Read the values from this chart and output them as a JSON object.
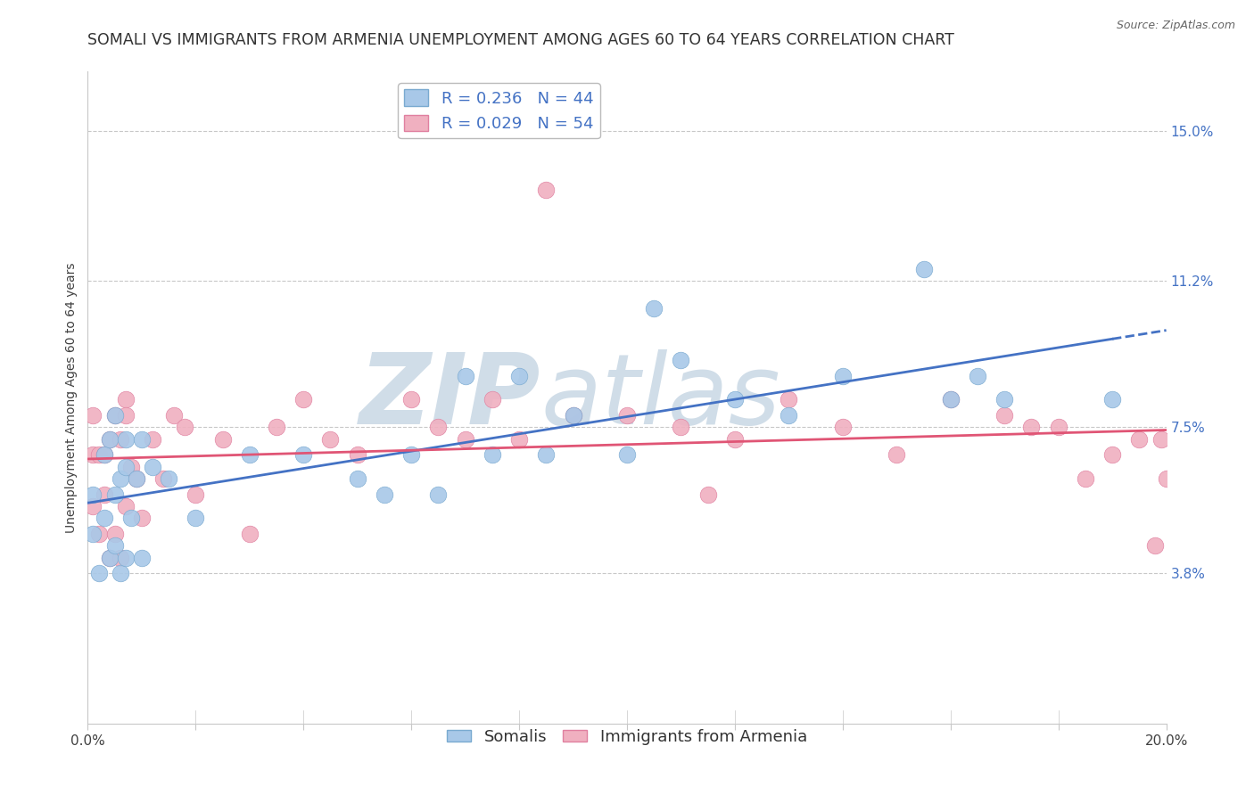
{
  "title": "SOMALI VS IMMIGRANTS FROM ARMENIA UNEMPLOYMENT AMONG AGES 60 TO 64 YEARS CORRELATION CHART",
  "source_text": "Source: ZipAtlas.com",
  "ylabel": "Unemployment Among Ages 60 to 64 years",
  "xlim": [
    0.0,
    0.2
  ],
  "ylim": [
    0.0,
    0.165
  ],
  "right_ytick_vals": [
    0.038,
    0.075,
    0.112,
    0.15
  ],
  "right_ytick_labels": [
    "3.8%",
    "7.5%",
    "11.2%",
    "15.0%"
  ],
  "watermark": "ZIPatlas",
  "watermark_color": "#d0dde8",
  "background_color": "#ffffff",
  "grid_color": "#c8c8c8",
  "somali_color": "#a8c8e8",
  "somali_edge_color": "#7aaad0",
  "armenia_color": "#f0b0c0",
  "armenia_edge_color": "#e080a0",
  "somali_R": 0.236,
  "somali_N": 44,
  "armenia_R": 0.029,
  "armenia_N": 54,
  "somali_line_color": "#4472c4",
  "armenia_line_color": "#e05575",
  "somali_points_x": [
    0.001,
    0.001,
    0.002,
    0.003,
    0.003,
    0.004,
    0.004,
    0.005,
    0.005,
    0.005,
    0.006,
    0.006,
    0.007,
    0.007,
    0.007,
    0.008,
    0.009,
    0.01,
    0.01,
    0.012,
    0.015,
    0.02,
    0.03,
    0.04,
    0.05,
    0.055,
    0.06,
    0.065,
    0.07,
    0.075,
    0.08,
    0.085,
    0.09,
    0.1,
    0.105,
    0.11,
    0.12,
    0.13,
    0.14,
    0.155,
    0.16,
    0.165,
    0.17,
    0.19
  ],
  "somali_points_y": [
    0.048,
    0.058,
    0.038,
    0.052,
    0.068,
    0.042,
    0.072,
    0.045,
    0.058,
    0.078,
    0.038,
    0.062,
    0.042,
    0.065,
    0.072,
    0.052,
    0.062,
    0.042,
    0.072,
    0.065,
    0.062,
    0.052,
    0.068,
    0.068,
    0.062,
    0.058,
    0.068,
    0.058,
    0.088,
    0.068,
    0.088,
    0.068,
    0.078,
    0.068,
    0.105,
    0.092,
    0.082,
    0.078,
    0.088,
    0.115,
    0.082,
    0.088,
    0.082,
    0.082
  ],
  "armenia_points_x": [
    0.001,
    0.001,
    0.001,
    0.002,
    0.002,
    0.003,
    0.004,
    0.004,
    0.005,
    0.005,
    0.006,
    0.006,
    0.007,
    0.007,
    0.008,
    0.009,
    0.01,
    0.012,
    0.014,
    0.016,
    0.018,
    0.02,
    0.025,
    0.03,
    0.035,
    0.04,
    0.045,
    0.05,
    0.06,
    0.065,
    0.07,
    0.075,
    0.08,
    0.085,
    0.09,
    0.1,
    0.11,
    0.115,
    0.12,
    0.13,
    0.14,
    0.15,
    0.16,
    0.17,
    0.175,
    0.18,
    0.185,
    0.19,
    0.195,
    0.198,
    0.199,
    0.2,
    0.003,
    0.007
  ],
  "armenia_points_y": [
    0.055,
    0.068,
    0.078,
    0.048,
    0.068,
    0.058,
    0.042,
    0.072,
    0.048,
    0.078,
    0.042,
    0.072,
    0.055,
    0.082,
    0.065,
    0.062,
    0.052,
    0.072,
    0.062,
    0.078,
    0.075,
    0.058,
    0.072,
    0.048,
    0.075,
    0.082,
    0.072,
    0.068,
    0.082,
    0.075,
    0.072,
    0.082,
    0.072,
    0.135,
    0.078,
    0.078,
    0.075,
    0.058,
    0.072,
    0.082,
    0.075,
    0.068,
    0.082,
    0.078,
    0.075,
    0.075,
    0.062,
    0.068,
    0.072,
    0.045,
    0.072,
    0.062,
    0.068,
    0.078
  ],
  "legend_somali_label": "Somalis",
  "legend_armenia_label": "Immigrants from Armenia",
  "title_fontsize": 12.5,
  "axis_label_fontsize": 10,
  "tick_fontsize": 11,
  "legend_fontsize": 13,
  "legend_R_color": "#4472c4",
  "title_color": "#333333",
  "source_color": "#666666",
  "xtick_count": 10
}
